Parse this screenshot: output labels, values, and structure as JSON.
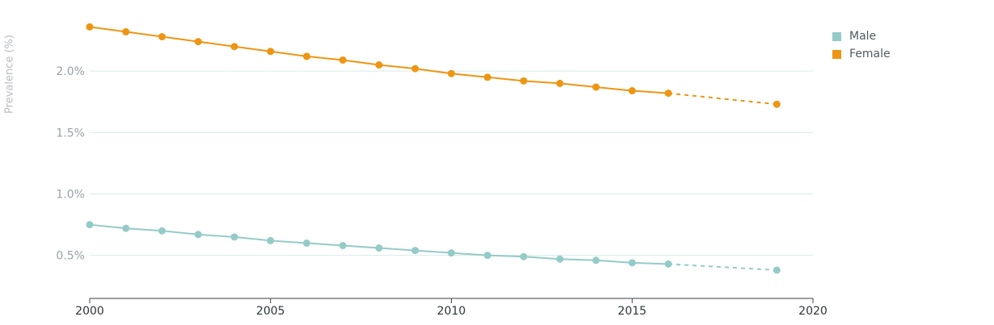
{
  "chart_data": {
    "type": "line",
    "ylabel": "Prevalence (%)",
    "xlabel": "",
    "xlim": [
      2000,
      2020
    ],
    "ylim": [
      0.15,
      2.5
    ],
    "x_ticks": [
      2000,
      2005,
      2010,
      2015,
      2020
    ],
    "x_tick_labels": [
      "2000",
      "2005",
      "2010",
      "2015",
      "2020"
    ],
    "y_ticks": [
      0.5,
      1.0,
      1.5,
      2.0
    ],
    "y_tick_labels": [
      "0.5%",
      "1.0%",
      "1.5%",
      "2.0%"
    ],
    "grid": true,
    "legend_position": "top-right",
    "projection_style": "dashed segment from 2016 to 2019",
    "series": [
      {
        "name": "Male",
        "color": "#94cbc8",
        "x": [
          2000,
          2001,
          2002,
          2003,
          2004,
          2005,
          2006,
          2007,
          2008,
          2009,
          2010,
          2011,
          2012,
          2013,
          2014,
          2015,
          2016,
          2019
        ],
        "values": [
          0.75,
          0.72,
          0.7,
          0.67,
          0.65,
          0.62,
          0.6,
          0.58,
          0.56,
          0.54,
          0.52,
          0.5,
          0.49,
          0.47,
          0.46,
          0.44,
          0.43,
          0.38
        ]
      },
      {
        "name": "Female",
        "color": "#ee9512",
        "x": [
          2000,
          2001,
          2002,
          2003,
          2004,
          2005,
          2006,
          2007,
          2008,
          2009,
          2010,
          2011,
          2012,
          2013,
          2014,
          2015,
          2016,
          2019
        ],
        "values": [
          2.36,
          2.32,
          2.28,
          2.24,
          2.2,
          2.16,
          2.12,
          2.09,
          2.05,
          2.02,
          1.98,
          1.95,
          1.92,
          1.9,
          1.87,
          1.84,
          1.82,
          1.73
        ]
      }
    ]
  }
}
